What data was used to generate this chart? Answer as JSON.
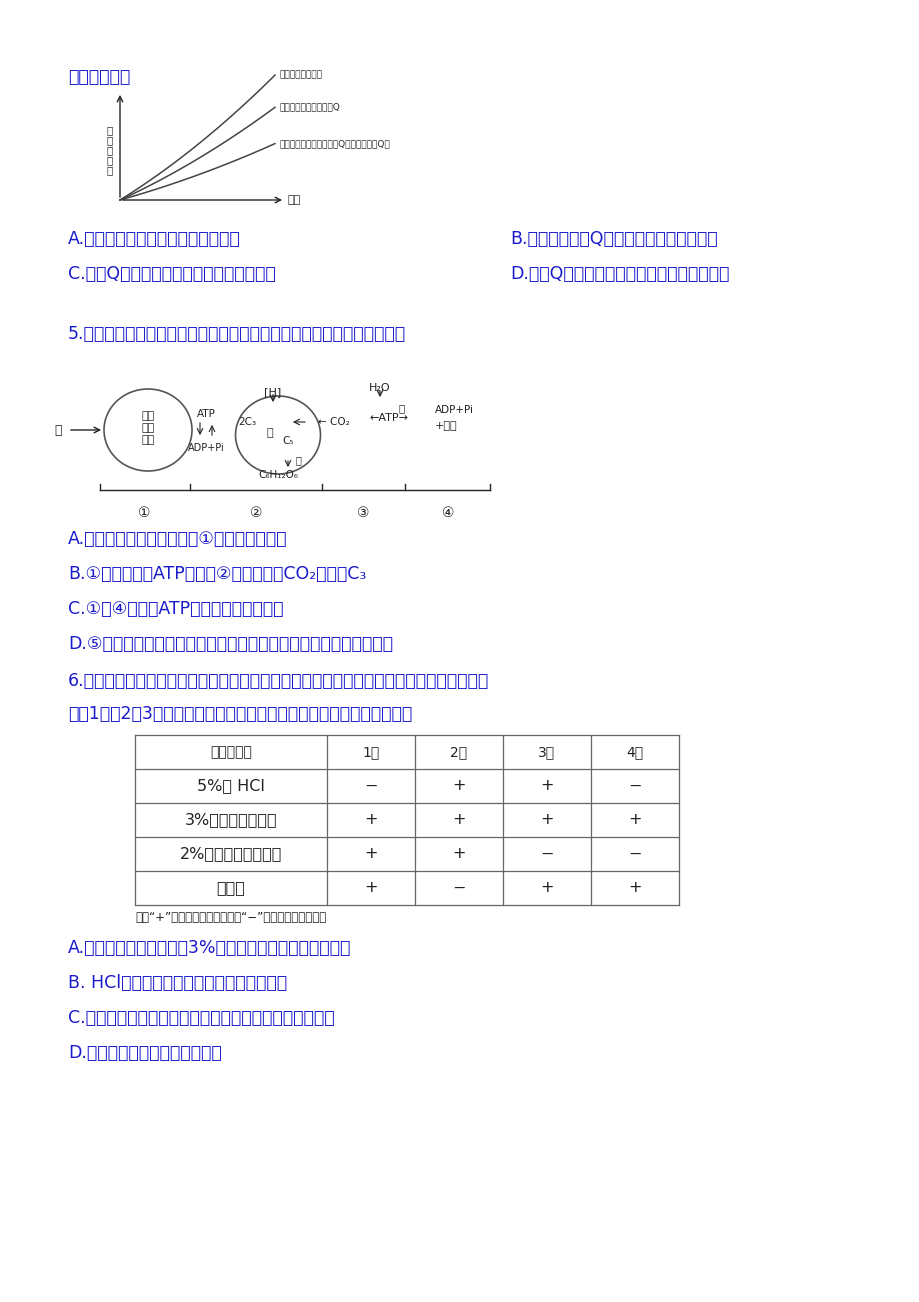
{
  "bg_color": "#ffffff",
  "blue": "#1a1acd",
  "black": "#222222",
  "dark": "#333333",
  "top_text": "的是（　　）",
  "graph_ylabel": "细\n菌\n死\n亡\n率",
  "graph_xlabel": "时间",
  "graph_line1_label": "甲组：只加利福平",
  "graph_line2_label": "乙组：加利福平和物质Q",
  "graph_line3_label": "丙组：不加利福平和物质Q（或只加物质Q）",
  "ans_A": "A.利福平会抑制细菌细胞的转录过程",
  "ans_B": "B.利福平和物质Q的浓度是该实验的自变量",
  "ans_C": "C.物质Q对细菌的繁殖没有直接的抑制作用",
  "ans_D": "D.物质Q会减弱利福平对细菌繁殖的抑制作用",
  "q5": "5.下图是生物体内能量供应与利用的示意图，下列说法正确的是（　　）",
  "q5A": "A.只有绻色植物才具有进行①过程所需的色素",
  "q5B": "B.①过程产生的ATP只用于②过程中固定CO₂和还原C₃",
  "q5C": "C.①、④中合成ATP所需的能量来源不同",
  "q5D": "D.⑤中的能量可用于肌肉收缩、人的红细胞吸收葡萄糖、兴奋传导等",
  "q6": "6.生物兴趣小组在四组试管中加入的物质如下表，保温一段时间后，用斌林试剂进行检测，",
  "q6b": "发现1、、2、3组均出现了砖红色沉淠。下列有关叙述错误的是（　　）",
  "q6A": "A.由检测结果可以推断，3%可溶性淦粉溶液中混有还原糖",
  "q6B": "B. HCl具有降低淦粉水解所需活化能的作用",
  "q6C": "C.根据实验结果可判断，酸性条件下淦粉酶是否具有活性",
  "q6D": "D.该实验不能证明酶具有专一性",
  "th": [
    "添加的物质",
    "1组",
    "2组",
    "3组",
    "4组"
  ],
  "tr1": [
    "5%的 HCl",
    "−",
    "+",
    "+",
    "−"
  ],
  "tr2": [
    "3%可溶性淦粉溶液",
    "+",
    "+",
    "+",
    "+"
  ],
  "tr3": [
    "2%的新鲜淦粉酶溶液",
    "+",
    "+",
    "−",
    "−"
  ],
  "tr4": [
    "蔭馏水",
    "+",
    "−",
    "+",
    "+"
  ],
  "tnote": "注：“+”代表添加对应的物质；“−”代表未添加对应物质"
}
